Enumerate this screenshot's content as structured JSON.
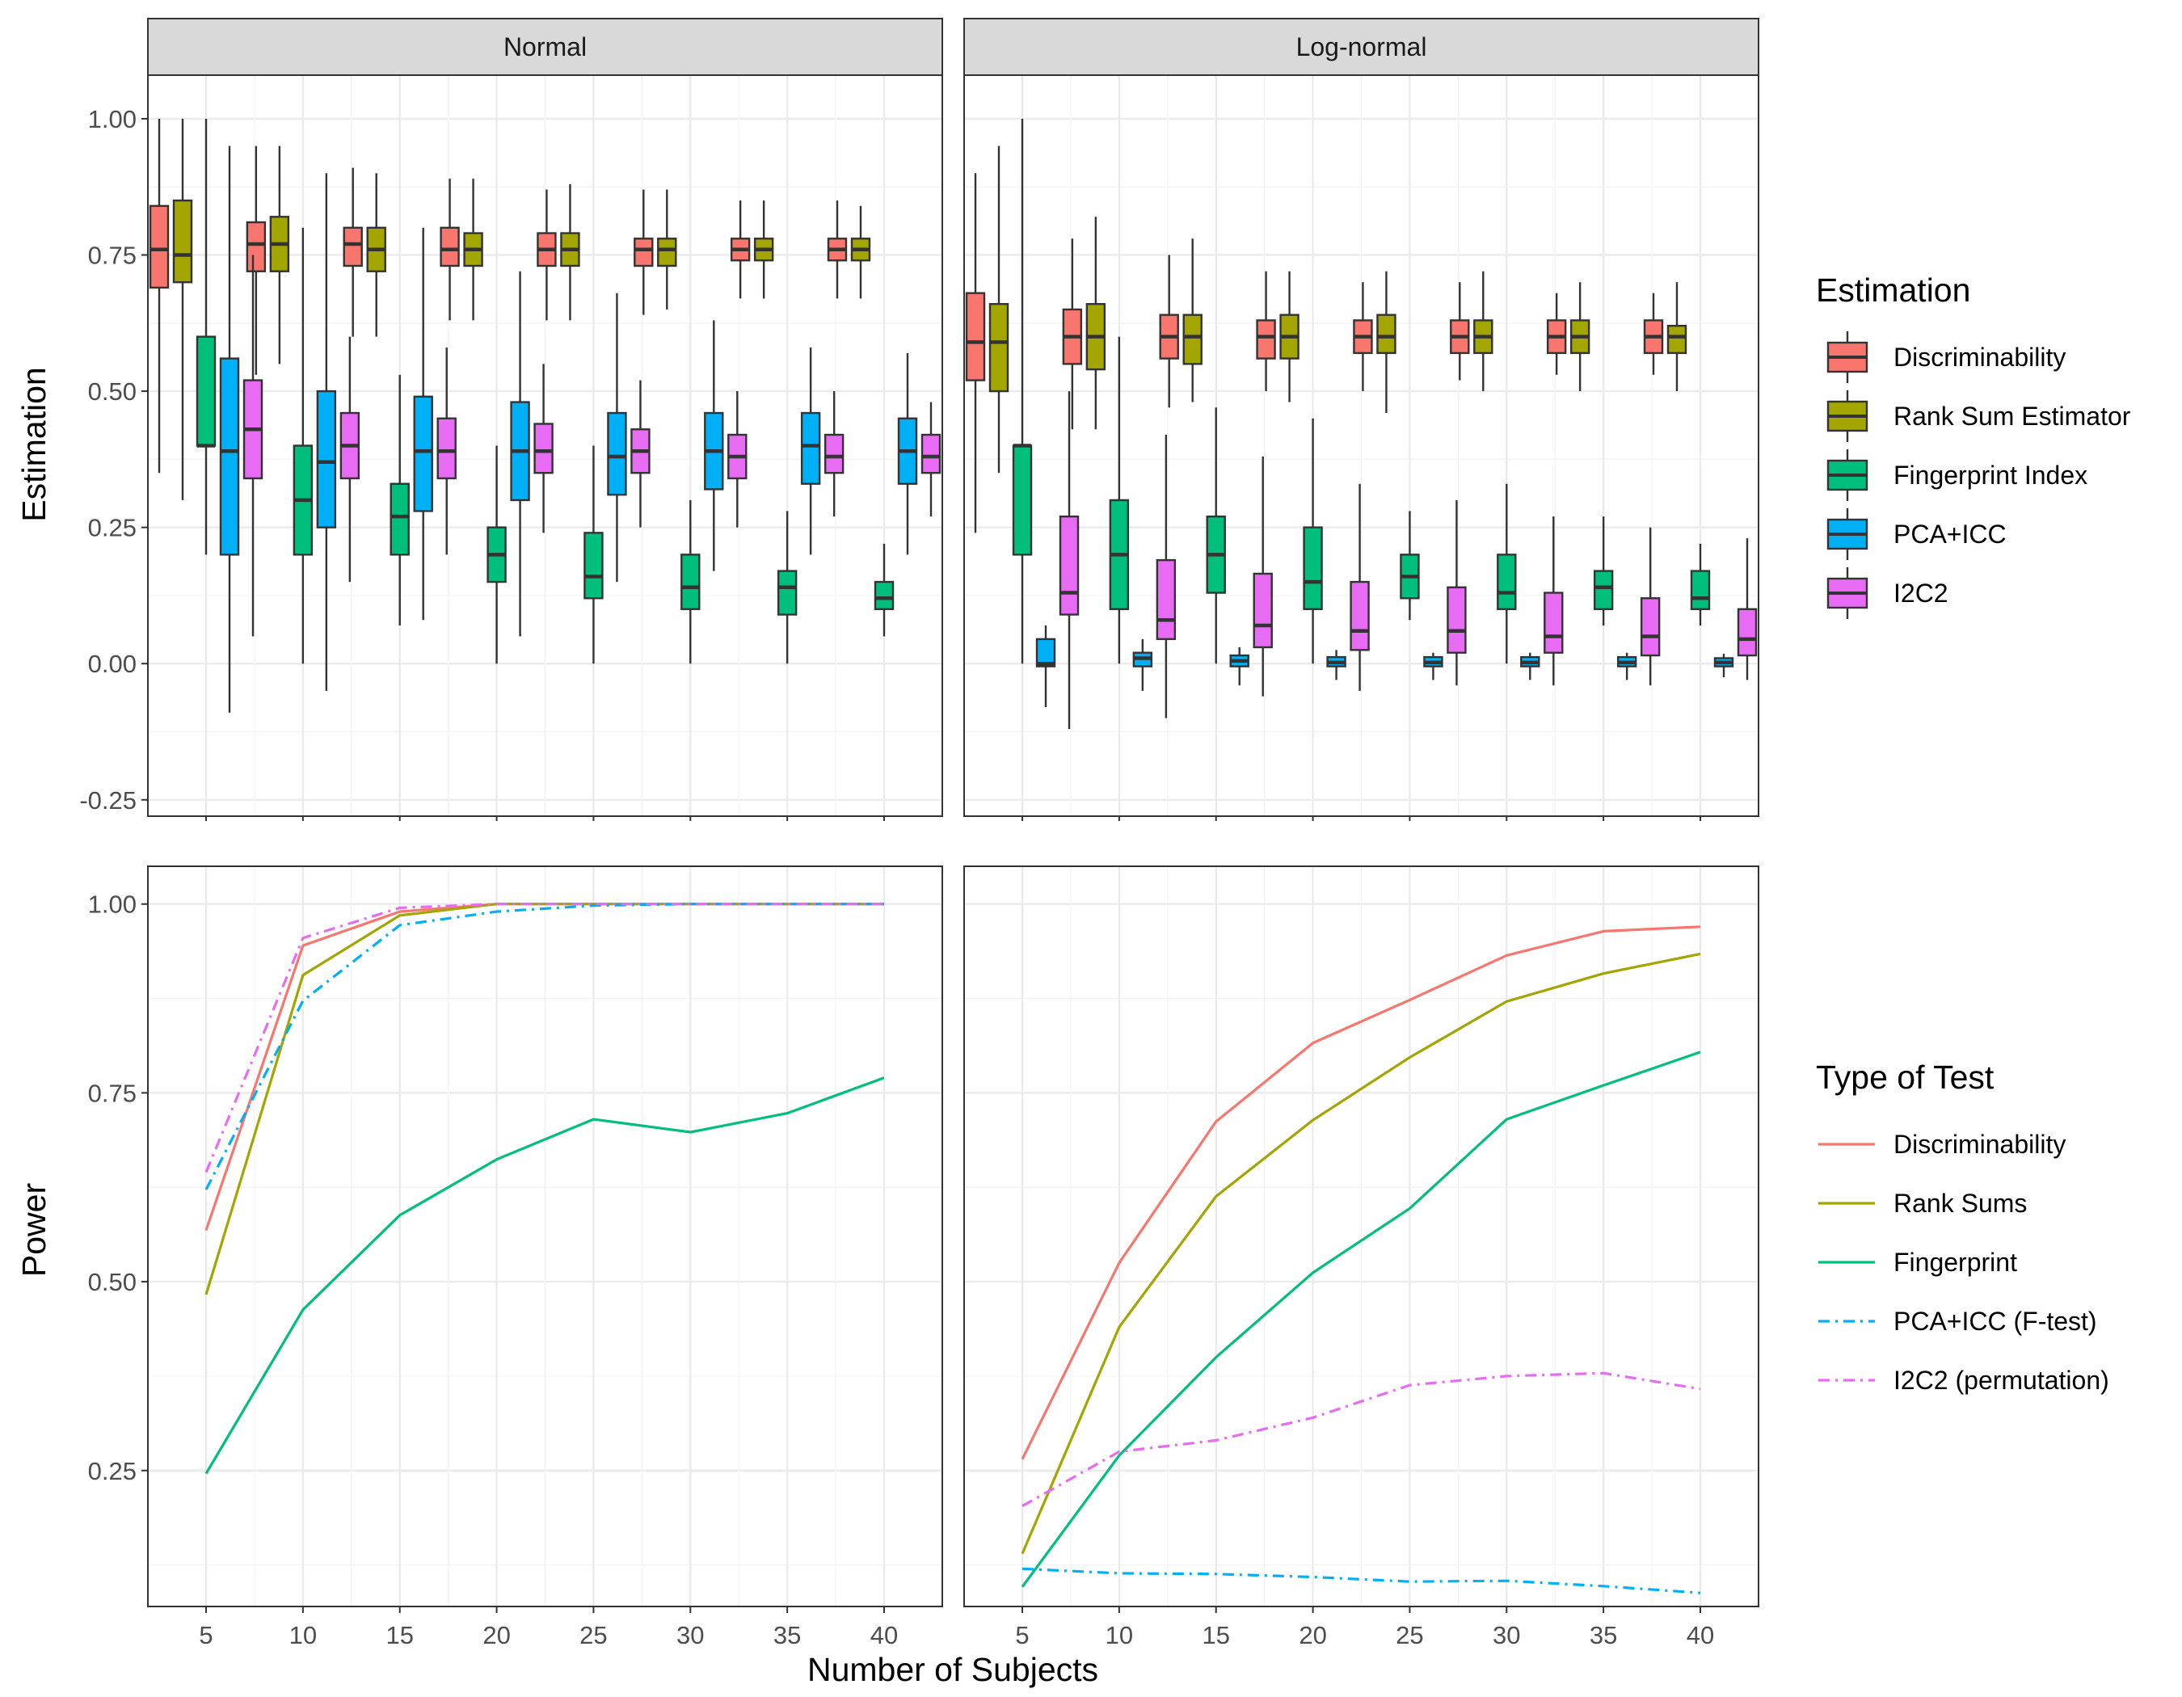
{
  "colors": {
    "Discriminability": "#F8766D",
    "Rank Sum Estimator": "#A3A500",
    "Fingerprint Index": "#00BF7D",
    "PCA+ICC": "#00B0F6",
    "I2C2": "#E76BF3"
  },
  "chart_data": [
    {
      "type": "boxplot",
      "panel": "Normal",
      "strip_label": "Normal",
      "ylabel": "Estimation",
      "xlabel": "Number of Subjects",
      "x": [
        5,
        10,
        15,
        20,
        25,
        30,
        35,
        40
      ],
      "x_tick_labels": [
        "5",
        "10",
        "15",
        "20",
        "25",
        "30",
        "35",
        "40"
      ],
      "ylim": [
        -0.28,
        1.08
      ],
      "y_ticks": [
        -0.25,
        0.0,
        0.25,
        0.5,
        0.75,
        1.0
      ],
      "y_tick_labels": [
        "-0.25",
        "0.00",
        "0.25",
        "0.50",
        "0.75",
        "1.00"
      ],
      "grid": true,
      "series": [
        {
          "name": "Discriminability",
          "boxes": [
            [
              0.35,
              0.69,
              0.76,
              0.84,
              1.0
            ],
            [
              0.53,
              0.72,
              0.77,
              0.81,
              0.95
            ],
            [
              0.6,
              0.73,
              0.77,
              0.8,
              0.91
            ],
            [
              0.63,
              0.73,
              0.76,
              0.8,
              0.89
            ],
            [
              0.63,
              0.73,
              0.76,
              0.79,
              0.87
            ],
            [
              0.64,
              0.73,
              0.76,
              0.78,
              0.87
            ],
            [
              0.67,
              0.74,
              0.76,
              0.78,
              0.85
            ],
            [
              0.67,
              0.74,
              0.76,
              0.78,
              0.85
            ]
          ]
        },
        {
          "name": "Rank Sum Estimator",
          "boxes": [
            [
              0.3,
              0.7,
              0.75,
              0.85,
              1.0
            ],
            [
              0.55,
              0.72,
              0.77,
              0.82,
              0.95
            ],
            [
              0.6,
              0.72,
              0.76,
              0.8,
              0.9
            ],
            [
              0.63,
              0.73,
              0.76,
              0.79,
              0.89
            ],
            [
              0.63,
              0.73,
              0.76,
              0.79,
              0.88
            ],
            [
              0.65,
              0.73,
              0.76,
              0.78,
              0.87
            ],
            [
              0.67,
              0.74,
              0.76,
              0.78,
              0.85
            ],
            [
              0.67,
              0.74,
              0.76,
              0.78,
              0.84
            ]
          ]
        },
        {
          "name": "Fingerprint Index",
          "boxes": [
            [
              0.2,
              0.4,
              0.4,
              0.6,
              1.0
            ],
            [
              0.0,
              0.2,
              0.3,
              0.4,
              0.8
            ],
            [
              0.07,
              0.2,
              0.27,
              0.33,
              0.53
            ],
            [
              0.0,
              0.15,
              0.2,
              0.25,
              0.4
            ],
            [
              0.0,
              0.12,
              0.16,
              0.24,
              0.4
            ],
            [
              0.0,
              0.1,
              0.14,
              0.2,
              0.3
            ],
            [
              0.0,
              0.09,
              0.14,
              0.17,
              0.28
            ],
            [
              0.05,
              0.1,
              0.12,
              0.15,
              0.22
            ]
          ]
        },
        {
          "name": "PCA+ICC",
          "boxes": [
            [
              -0.09,
              0.2,
              0.39,
              0.56,
              0.95
            ],
            [
              -0.05,
              0.25,
              0.37,
              0.5,
              0.9
            ],
            [
              0.08,
              0.28,
              0.39,
              0.49,
              0.8
            ],
            [
              0.05,
              0.3,
              0.39,
              0.48,
              0.72
            ],
            [
              0.15,
              0.31,
              0.38,
              0.46,
              0.68
            ],
            [
              0.17,
              0.32,
              0.39,
              0.46,
              0.63
            ],
            [
              0.2,
              0.33,
              0.4,
              0.46,
              0.58
            ],
            [
              0.2,
              0.33,
              0.39,
              0.45,
              0.57
            ]
          ]
        },
        {
          "name": "I2C2",
          "boxes": [
            [
              0.05,
              0.34,
              0.43,
              0.52,
              0.75
            ],
            [
              0.15,
              0.34,
              0.4,
              0.46,
              0.6
            ],
            [
              0.2,
              0.34,
              0.39,
              0.45,
              0.58
            ],
            [
              0.24,
              0.35,
              0.39,
              0.44,
              0.55
            ],
            [
              0.25,
              0.35,
              0.39,
              0.43,
              0.52
            ],
            [
              0.25,
              0.34,
              0.38,
              0.42,
              0.5
            ],
            [
              0.27,
              0.35,
              0.38,
              0.42,
              0.5
            ],
            [
              0.27,
              0.35,
              0.38,
              0.42,
              0.48
            ]
          ]
        }
      ]
    },
    {
      "type": "boxplot",
      "panel": "Log-normal",
      "strip_label": "Log-normal",
      "ylabel": "Estimation",
      "xlabel": "Number of Subjects",
      "x": [
        5,
        10,
        15,
        20,
        25,
        30,
        35,
        40
      ],
      "x_tick_labels": [
        "5",
        "10",
        "15",
        "20",
        "25",
        "30",
        "35",
        "40"
      ],
      "ylim": [
        -0.28,
        1.08
      ],
      "grid": true,
      "series": [
        {
          "name": "Discriminability",
          "boxes": [
            [
              0.24,
              0.52,
              0.59,
              0.68,
              0.9
            ],
            [
              0.43,
              0.55,
              0.6,
              0.65,
              0.78
            ],
            [
              0.47,
              0.56,
              0.6,
              0.64,
              0.75
            ],
            [
              0.5,
              0.56,
              0.6,
              0.63,
              0.72
            ],
            [
              0.5,
              0.57,
              0.6,
              0.63,
              0.7
            ],
            [
              0.52,
              0.57,
              0.6,
              0.63,
              0.7
            ],
            [
              0.53,
              0.57,
              0.6,
              0.63,
              0.68
            ],
            [
              0.53,
              0.57,
              0.6,
              0.63,
              0.68
            ]
          ]
        },
        {
          "name": "Rank Sum Estimator",
          "boxes": [
            [
              0.35,
              0.5,
              0.59,
              0.66,
              0.95
            ],
            [
              0.43,
              0.54,
              0.6,
              0.66,
              0.82
            ],
            [
              0.48,
              0.55,
              0.6,
              0.64,
              0.78
            ],
            [
              0.48,
              0.56,
              0.6,
              0.64,
              0.72
            ],
            [
              0.46,
              0.57,
              0.6,
              0.64,
              0.72
            ],
            [
              0.5,
              0.57,
              0.6,
              0.63,
              0.72
            ],
            [
              0.5,
              0.57,
              0.6,
              0.63,
              0.7
            ],
            [
              0.5,
              0.57,
              0.6,
              0.62,
              0.7
            ]
          ]
        },
        {
          "name": "Fingerprint Index",
          "boxes": [
            [
              0.0,
              0.2,
              0.4,
              0.4,
              1.0
            ],
            [
              0.0,
              0.1,
              0.2,
              0.3,
              0.6
            ],
            [
              0.0,
              0.13,
              0.2,
              0.27,
              0.47
            ],
            [
              0.0,
              0.1,
              0.15,
              0.25,
              0.45
            ],
            [
              0.08,
              0.12,
              0.16,
              0.2,
              0.28
            ],
            [
              0.0,
              0.1,
              0.13,
              0.2,
              0.33
            ],
            [
              0.07,
              0.1,
              0.14,
              0.17,
              0.27
            ],
            [
              0.07,
              0.1,
              0.12,
              0.17,
              0.22
            ]
          ]
        },
        {
          "name": "PCA+ICC",
          "boxes": [
            [
              -0.08,
              -0.005,
              0.0,
              0.045,
              0.07
            ],
            [
              -0.05,
              -0.005,
              0.01,
              0.02,
              0.045
            ],
            [
              -0.04,
              -0.005,
              0.005,
              0.015,
              0.03
            ],
            [
              -0.03,
              -0.005,
              0.002,
              0.012,
              0.025
            ],
            [
              -0.03,
              -0.005,
              0.002,
              0.012,
              0.02
            ],
            [
              -0.03,
              -0.005,
              0.002,
              0.012,
              0.02
            ],
            [
              -0.03,
              -0.005,
              0.002,
              0.012,
              0.02
            ],
            [
              -0.025,
              -0.005,
              0.002,
              0.01,
              0.018
            ]
          ]
        },
        {
          "name": "I2C2",
          "boxes": [
            [
              -0.12,
              0.09,
              0.13,
              0.27,
              0.5
            ],
            [
              -0.1,
              0.045,
              0.08,
              0.19,
              0.42
            ],
            [
              -0.06,
              0.03,
              0.07,
              0.165,
              0.38
            ],
            [
              -0.05,
              0.025,
              0.06,
              0.15,
              0.33
            ],
            [
              -0.04,
              0.02,
              0.06,
              0.14,
              0.3
            ],
            [
              -0.04,
              0.02,
              0.05,
              0.13,
              0.27
            ],
            [
              -0.04,
              0.015,
              0.05,
              0.12,
              0.25
            ],
            [
              -0.03,
              0.015,
              0.045,
              0.1,
              0.23
            ]
          ]
        }
      ]
    },
    {
      "type": "line",
      "panel": "Normal",
      "ylabel": "Power",
      "xlabel": "Number of Subjects",
      "x": [
        5,
        10,
        15,
        20,
        25,
        30,
        35,
        40
      ],
      "x_tick_labels": [
        "5",
        "10",
        "15",
        "20",
        "25",
        "30",
        "35",
        "40"
      ],
      "ylim": [
        0.07,
        1.05
      ],
      "y_ticks": [
        0.25,
        0.5,
        0.75,
        1.0
      ],
      "y_tick_labels": [
        "0.25",
        "0.50",
        "0.75",
        "1.00"
      ],
      "grid": true,
      "series": [
        {
          "name": "Discriminability",
          "values": [
            0.568,
            0.945,
            0.99,
            1.0,
            1.0,
            1.0,
            1.0,
            1.0
          ]
        },
        {
          "name": "Rank Sums",
          "values": [
            0.483,
            0.906,
            0.985,
            1.0,
            1.0,
            1.0,
            1.0,
            1.0
          ]
        },
        {
          "name": "Fingerprint",
          "values": [
            0.246,
            0.463,
            0.588,
            0.662,
            0.715,
            0.698,
            0.723,
            0.77
          ]
        },
        {
          "name": "PCA+ICC (F-test)",
          "values": [
            0.622,
            0.872,
            0.972,
            0.99,
            0.998,
            1.0,
            1.0,
            1.0
          ]
        },
        {
          "name": "I2C2 (permutation)",
          "values": [
            0.645,
            0.955,
            0.995,
            1.0,
            1.0,
            1.0,
            1.0,
            1.0
          ]
        }
      ]
    },
    {
      "type": "line",
      "panel": "Log-normal",
      "ylabel": "Power",
      "xlabel": "Number of Subjects",
      "x": [
        5,
        10,
        15,
        20,
        25,
        30,
        35,
        40
      ],
      "x_tick_labels": [
        "5",
        "10",
        "15",
        "20",
        "25",
        "30",
        "35",
        "40"
      ],
      "ylim": [
        0.07,
        1.05
      ],
      "grid": true,
      "series": [
        {
          "name": "Discriminability",
          "values": [
            0.265,
            0.525,
            0.712,
            0.816,
            0.873,
            0.932,
            0.964,
            0.97
          ]
        },
        {
          "name": "Rank Sums",
          "values": [
            0.14,
            0.44,
            0.613,
            0.714,
            0.797,
            0.871,
            0.908,
            0.934
          ]
        },
        {
          "name": "Fingerprint",
          "values": [
            0.096,
            0.27,
            0.4,
            0.512,
            0.597,
            0.715,
            0.76,
            0.804
          ]
        },
        {
          "name": "PCA+ICC (F-test)",
          "values": [
            0.12,
            0.114,
            0.113,
            0.109,
            0.103,
            0.104,
            0.097,
            0.088
          ]
        },
        {
          "name": "I2C2 (permutation)",
          "values": [
            0.203,
            0.275,
            0.29,
            0.32,
            0.363,
            0.375,
            0.379,
            0.358
          ]
        }
      ]
    }
  ],
  "legend_estimation": {
    "title": "Estimation",
    "items": [
      "Discriminability",
      "Rank Sum Estimator",
      "Fingerprint Index",
      "PCA+ICC",
      "I2C2"
    ]
  },
  "legend_test": {
    "title": "Type of Test",
    "items": [
      {
        "label": "Discriminability",
        "dash": "solid"
      },
      {
        "label": "Rank Sums",
        "dash": "solid"
      },
      {
        "label": "Fingerprint",
        "dash": "solid"
      },
      {
        "label": "PCA+ICC (F-test)",
        "dash": "dashdot"
      },
      {
        "label": "I2C2 (permutation)",
        "dash": "dashdot"
      }
    ]
  },
  "axis_titles": {
    "y_top": "Estimation",
    "y_bottom": "Power",
    "x": "Number of Subjects"
  }
}
